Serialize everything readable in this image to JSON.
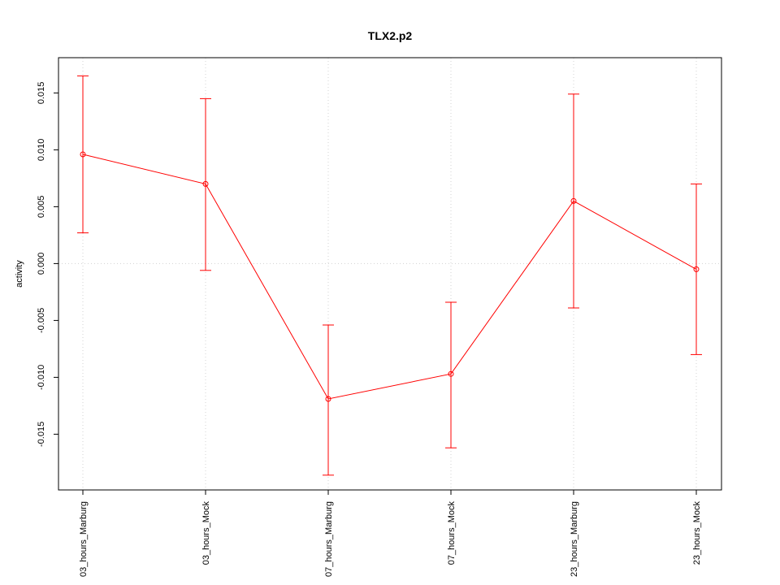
{
  "chart_data": {
    "type": "line",
    "title": "TLX2.p2",
    "xlabel": "",
    "ylabel": "activity",
    "categories": [
      "03_hours_Marburg",
      "03_hours_Mock",
      "07_hours_Marburg",
      "07_hours_Mock",
      "23_hours_Marburg",
      "23_hours_Mock"
    ],
    "series": [
      {
        "values": [
          0.0096,
          0.007,
          -0.0119,
          -0.0097,
          0.0055,
          -0.0005
        ],
        "err_low": [
          0.0027,
          -0.0006,
          -0.0186,
          -0.0162,
          -0.0039,
          -0.008
        ],
        "err_high": [
          0.0165,
          0.0145,
          -0.0054,
          -0.0034,
          0.0149,
          0.007
        ],
        "color": "#ff0000"
      }
    ],
    "ylim": [
      -0.0199,
      0.0181
    ],
    "yticks": [
      -0.015,
      -0.01,
      -0.005,
      0.0,
      0.005,
      0.01,
      0.015
    ],
    "ytick_labels": [
      "-0.015",
      "-0.010",
      "-0.005",
      "0.000",
      "0.005",
      "0.010",
      "0.015"
    ],
    "grid": true,
    "grid_color": "#d3d3d3",
    "axis_color": "#000000"
  }
}
